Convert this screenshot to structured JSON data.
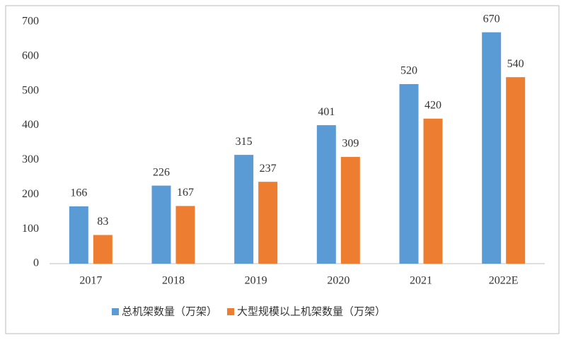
{
  "chart_data": {
    "type": "bar",
    "categories": [
      "2017",
      "2018",
      "2019",
      "2020",
      "2021",
      "2022E"
    ],
    "series": [
      {
        "name": "总机架数量（万架）",
        "color": "#5b9bd5",
        "values": [
          166,
          226,
          315,
          401,
          520,
          670
        ]
      },
      {
        "name": "大型规模以上机架数量（万架）",
        "color": "#ed7d31",
        "values": [
          83,
          167,
          237,
          309,
          420,
          540
        ]
      }
    ],
    "ylim": [
      0,
      700
    ],
    "yticks": [
      0,
      100,
      200,
      300,
      400,
      500,
      600,
      700
    ],
    "grid": false,
    "legend": "bottom"
  }
}
